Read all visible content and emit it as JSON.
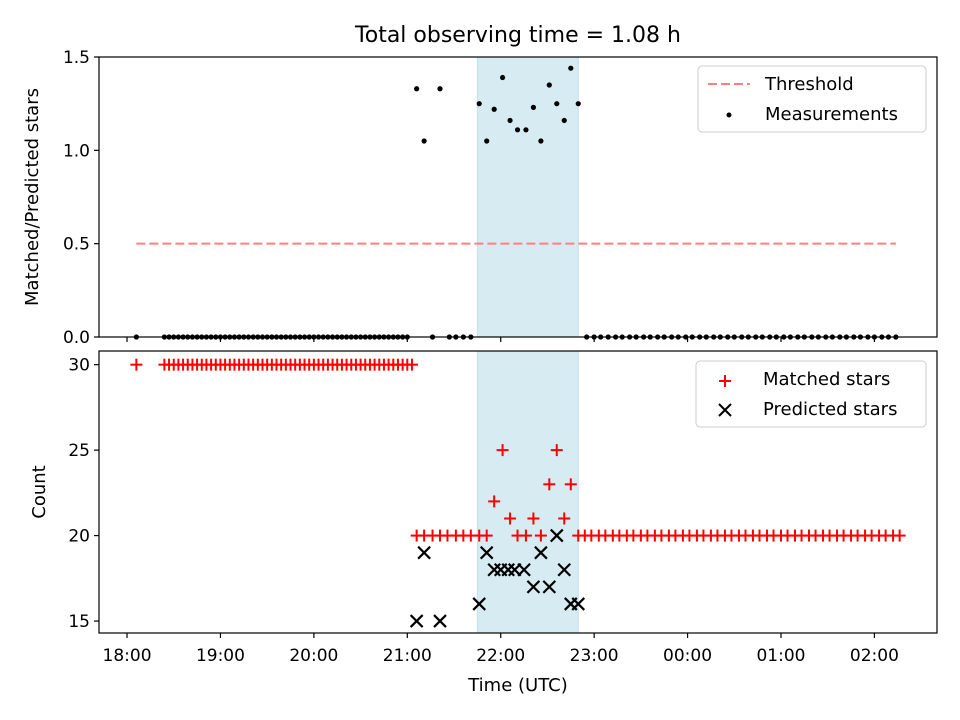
{
  "title": "Total observing time = 1.08 h",
  "colors": {
    "threshold": "#ff7f7f",
    "measurement": "#000000",
    "matched": "#ff0000",
    "predicted": "#000000",
    "highlight": "#add8e6"
  },
  "chart_data": [
    {
      "type": "scatter",
      "panel": "top",
      "ylabel": "Matched/Predicted stars",
      "xlim": [
        17.7,
        26.67
      ],
      "ylim": [
        0,
        1.5
      ],
      "yticks": [
        "0.0",
        "0.5",
        "1.0",
        "1.5"
      ],
      "xtick_values": [
        18,
        19,
        20,
        21,
        22,
        23,
        24,
        25,
        26
      ],
      "highlight_span": [
        21.75,
        22.83
      ],
      "legend": {
        "position": "upper right",
        "threshold_label": "Threshold",
        "measurements_label": "Measurements"
      },
      "threshold": {
        "value": 0.5,
        "x_range": [
          18.1,
          26.23
        ]
      },
      "measurements": [
        [
          18.1,
          0
        ],
        [
          18.4,
          0
        ],
        [
          18.45,
          0
        ],
        [
          18.5,
          0
        ],
        [
          18.55,
          0
        ],
        [
          18.6,
          0
        ],
        [
          18.65,
          0
        ],
        [
          18.7,
          0
        ],
        [
          18.75,
          0
        ],
        [
          18.8,
          0
        ],
        [
          18.85,
          0
        ],
        [
          18.9,
          0
        ],
        [
          18.95,
          0
        ],
        [
          19.0,
          0
        ],
        [
          19.05,
          0
        ],
        [
          19.1,
          0
        ],
        [
          19.15,
          0
        ],
        [
          19.2,
          0
        ],
        [
          19.25,
          0
        ],
        [
          19.3,
          0
        ],
        [
          19.35,
          0
        ],
        [
          19.4,
          0
        ],
        [
          19.45,
          0
        ],
        [
          19.5,
          0
        ],
        [
          19.55,
          0
        ],
        [
          19.6,
          0
        ],
        [
          19.65,
          0
        ],
        [
          19.7,
          0
        ],
        [
          19.75,
          0
        ],
        [
          19.8,
          0
        ],
        [
          19.85,
          0
        ],
        [
          19.9,
          0
        ],
        [
          19.95,
          0
        ],
        [
          20.0,
          0
        ],
        [
          20.05,
          0
        ],
        [
          20.1,
          0
        ],
        [
          20.15,
          0
        ],
        [
          20.2,
          0
        ],
        [
          20.25,
          0
        ],
        [
          20.3,
          0
        ],
        [
          20.35,
          0
        ],
        [
          20.4,
          0
        ],
        [
          20.45,
          0
        ],
        [
          20.5,
          0
        ],
        [
          20.55,
          0
        ],
        [
          20.6,
          0
        ],
        [
          20.65,
          0
        ],
        [
          20.7,
          0
        ],
        [
          20.75,
          0
        ],
        [
          20.8,
          0
        ],
        [
          20.85,
          0
        ],
        [
          20.9,
          0
        ],
        [
          20.95,
          0
        ],
        [
          21.0,
          0
        ],
        [
          21.1,
          1.33
        ],
        [
          21.18,
          1.05
        ],
        [
          21.27,
          0
        ],
        [
          21.35,
          1.33
        ],
        [
          21.45,
          0
        ],
        [
          21.52,
          0
        ],
        [
          21.6,
          0
        ],
        [
          21.68,
          0
        ],
        [
          21.77,
          1.25
        ],
        [
          21.85,
          1.05
        ],
        [
          21.93,
          1.22
        ],
        [
          22.02,
          1.39
        ],
        [
          22.1,
          1.16
        ],
        [
          22.18,
          1.11
        ],
        [
          22.27,
          1.11
        ],
        [
          22.35,
          1.23
        ],
        [
          22.43,
          1.05
        ],
        [
          22.52,
          1.35
        ],
        [
          22.6,
          1.25
        ],
        [
          22.68,
          1.16
        ],
        [
          22.75,
          1.44
        ],
        [
          22.83,
          1.25
        ],
        [
          22.92,
          0
        ],
        [
          23.0,
          0
        ],
        [
          23.07,
          0
        ],
        [
          23.15,
          0
        ],
        [
          23.23,
          0
        ],
        [
          23.3,
          0
        ],
        [
          23.38,
          0
        ],
        [
          23.45,
          0
        ],
        [
          23.53,
          0
        ],
        [
          23.6,
          0
        ],
        [
          23.68,
          0
        ],
        [
          23.75,
          0
        ],
        [
          23.83,
          0
        ],
        [
          23.9,
          0
        ],
        [
          23.98,
          0
        ],
        [
          24.05,
          0
        ],
        [
          24.13,
          0
        ],
        [
          24.2,
          0
        ],
        [
          24.28,
          0
        ],
        [
          24.35,
          0
        ],
        [
          24.43,
          0
        ],
        [
          24.5,
          0
        ],
        [
          24.58,
          0
        ],
        [
          24.65,
          0
        ],
        [
          24.73,
          0
        ],
        [
          24.8,
          0
        ],
        [
          24.88,
          0
        ],
        [
          24.95,
          0
        ],
        [
          25.03,
          0
        ],
        [
          25.1,
          0
        ],
        [
          25.18,
          0
        ],
        [
          25.25,
          0
        ],
        [
          25.33,
          0
        ],
        [
          25.4,
          0
        ],
        [
          25.48,
          0
        ],
        [
          25.55,
          0
        ],
        [
          25.63,
          0
        ],
        [
          25.7,
          0
        ],
        [
          25.78,
          0
        ],
        [
          25.85,
          0
        ],
        [
          25.93,
          0
        ],
        [
          26.0,
          0
        ],
        [
          26.08,
          0
        ],
        [
          26.15,
          0
        ],
        [
          26.23,
          0
        ]
      ]
    },
    {
      "type": "scatter",
      "panel": "bottom",
      "xlabel": "Time (UTC)",
      "ylabel": "Count",
      "xlim": [
        17.7,
        26.67
      ],
      "ylim": [
        14.3,
        30.8
      ],
      "yticks": [
        "15",
        "20",
        "25",
        "30"
      ],
      "xtick_values": [
        18,
        19,
        20,
        21,
        22,
        23,
        24,
        25,
        26
      ],
      "xticks": [
        "18:00",
        "19:00",
        "20:00",
        "21:00",
        "22:00",
        "23:00",
        "00:00",
        "01:00",
        "02:00"
      ],
      "highlight_span": [
        21.75,
        22.83
      ],
      "legend": {
        "position": "upper right",
        "matched_label": "Matched stars",
        "predicted_label": "Predicted stars"
      },
      "matched": [
        [
          18.1,
          30
        ],
        [
          18.4,
          30
        ],
        [
          18.45,
          30
        ],
        [
          18.5,
          30
        ],
        [
          18.55,
          30
        ],
        [
          18.6,
          30
        ],
        [
          18.65,
          30
        ],
        [
          18.7,
          30
        ],
        [
          18.75,
          30
        ],
        [
          18.8,
          30
        ],
        [
          18.85,
          30
        ],
        [
          18.9,
          30
        ],
        [
          18.95,
          30
        ],
        [
          19.0,
          30
        ],
        [
          19.05,
          30
        ],
        [
          19.1,
          30
        ],
        [
          19.15,
          30
        ],
        [
          19.2,
          30
        ],
        [
          19.25,
          30
        ],
        [
          19.3,
          30
        ],
        [
          19.35,
          30
        ],
        [
          19.4,
          30
        ],
        [
          19.45,
          30
        ],
        [
          19.5,
          30
        ],
        [
          19.55,
          30
        ],
        [
          19.6,
          30
        ],
        [
          19.65,
          30
        ],
        [
          19.7,
          30
        ],
        [
          19.75,
          30
        ],
        [
          19.8,
          30
        ],
        [
          19.85,
          30
        ],
        [
          19.9,
          30
        ],
        [
          19.95,
          30
        ],
        [
          20.0,
          30
        ],
        [
          20.05,
          30
        ],
        [
          20.1,
          30
        ],
        [
          20.15,
          30
        ],
        [
          20.2,
          30
        ],
        [
          20.25,
          30
        ],
        [
          20.3,
          30
        ],
        [
          20.35,
          30
        ],
        [
          20.4,
          30
        ],
        [
          20.45,
          30
        ],
        [
          20.5,
          30
        ],
        [
          20.55,
          30
        ],
        [
          20.6,
          30
        ],
        [
          20.65,
          30
        ],
        [
          20.7,
          30
        ],
        [
          20.75,
          30
        ],
        [
          20.8,
          30
        ],
        [
          20.85,
          30
        ],
        [
          20.9,
          30
        ],
        [
          20.95,
          30
        ],
        [
          21.0,
          30
        ],
        [
          21.05,
          30
        ],
        [
          21.1,
          20
        ],
        [
          21.18,
          20
        ],
        [
          21.27,
          20
        ],
        [
          21.35,
          20
        ],
        [
          21.43,
          20
        ],
        [
          21.52,
          20
        ],
        [
          21.6,
          20
        ],
        [
          21.68,
          20
        ],
        [
          21.77,
          20
        ],
        [
          21.85,
          20
        ],
        [
          21.93,
          22
        ],
        [
          22.02,
          25
        ],
        [
          22.1,
          21
        ],
        [
          22.18,
          20
        ],
        [
          22.27,
          20
        ],
        [
          22.35,
          21
        ],
        [
          22.43,
          20
        ],
        [
          22.52,
          23
        ],
        [
          22.6,
          25
        ],
        [
          22.68,
          21
        ],
        [
          22.75,
          23
        ],
        [
          22.83,
          20
        ],
        [
          22.9,
          20
        ],
        [
          22.97,
          20
        ],
        [
          23.05,
          20
        ],
        [
          23.12,
          20
        ],
        [
          23.2,
          20
        ],
        [
          23.27,
          20
        ],
        [
          23.35,
          20
        ],
        [
          23.42,
          20
        ],
        [
          23.5,
          20
        ],
        [
          23.57,
          20
        ],
        [
          23.65,
          20
        ],
        [
          23.72,
          20
        ],
        [
          23.8,
          20
        ],
        [
          23.87,
          20
        ],
        [
          23.95,
          20
        ],
        [
          24.02,
          20
        ],
        [
          24.1,
          20
        ],
        [
          24.17,
          20
        ],
        [
          24.25,
          20
        ],
        [
          24.32,
          20
        ],
        [
          24.4,
          20
        ],
        [
          24.47,
          20
        ],
        [
          24.55,
          20
        ],
        [
          24.62,
          20
        ],
        [
          24.7,
          20
        ],
        [
          24.77,
          20
        ],
        [
          24.85,
          20
        ],
        [
          24.92,
          20
        ],
        [
          25.0,
          20
        ],
        [
          25.07,
          20
        ],
        [
          25.15,
          20
        ],
        [
          25.22,
          20
        ],
        [
          25.3,
          20
        ],
        [
          25.37,
          20
        ],
        [
          25.45,
          20
        ],
        [
          25.52,
          20
        ],
        [
          25.6,
          20
        ],
        [
          25.67,
          20
        ],
        [
          25.75,
          20
        ],
        [
          25.82,
          20
        ],
        [
          25.9,
          20
        ],
        [
          25.97,
          20
        ],
        [
          26.05,
          20
        ],
        [
          26.12,
          20
        ],
        [
          26.2,
          20
        ],
        [
          26.27,
          20
        ]
      ],
      "predicted": [
        [
          21.1,
          15
        ],
        [
          21.18,
          19
        ],
        [
          21.35,
          15
        ],
        [
          21.77,
          16
        ],
        [
          21.85,
          19
        ],
        [
          21.93,
          18
        ],
        [
          22.0,
          18
        ],
        [
          22.08,
          18
        ],
        [
          22.15,
          18
        ],
        [
          22.25,
          18
        ],
        [
          22.35,
          17
        ],
        [
          22.43,
          19
        ],
        [
          22.52,
          17
        ],
        [
          22.6,
          20
        ],
        [
          22.68,
          18
        ],
        [
          22.75,
          16
        ],
        [
          22.83,
          16
        ]
      ]
    }
  ]
}
